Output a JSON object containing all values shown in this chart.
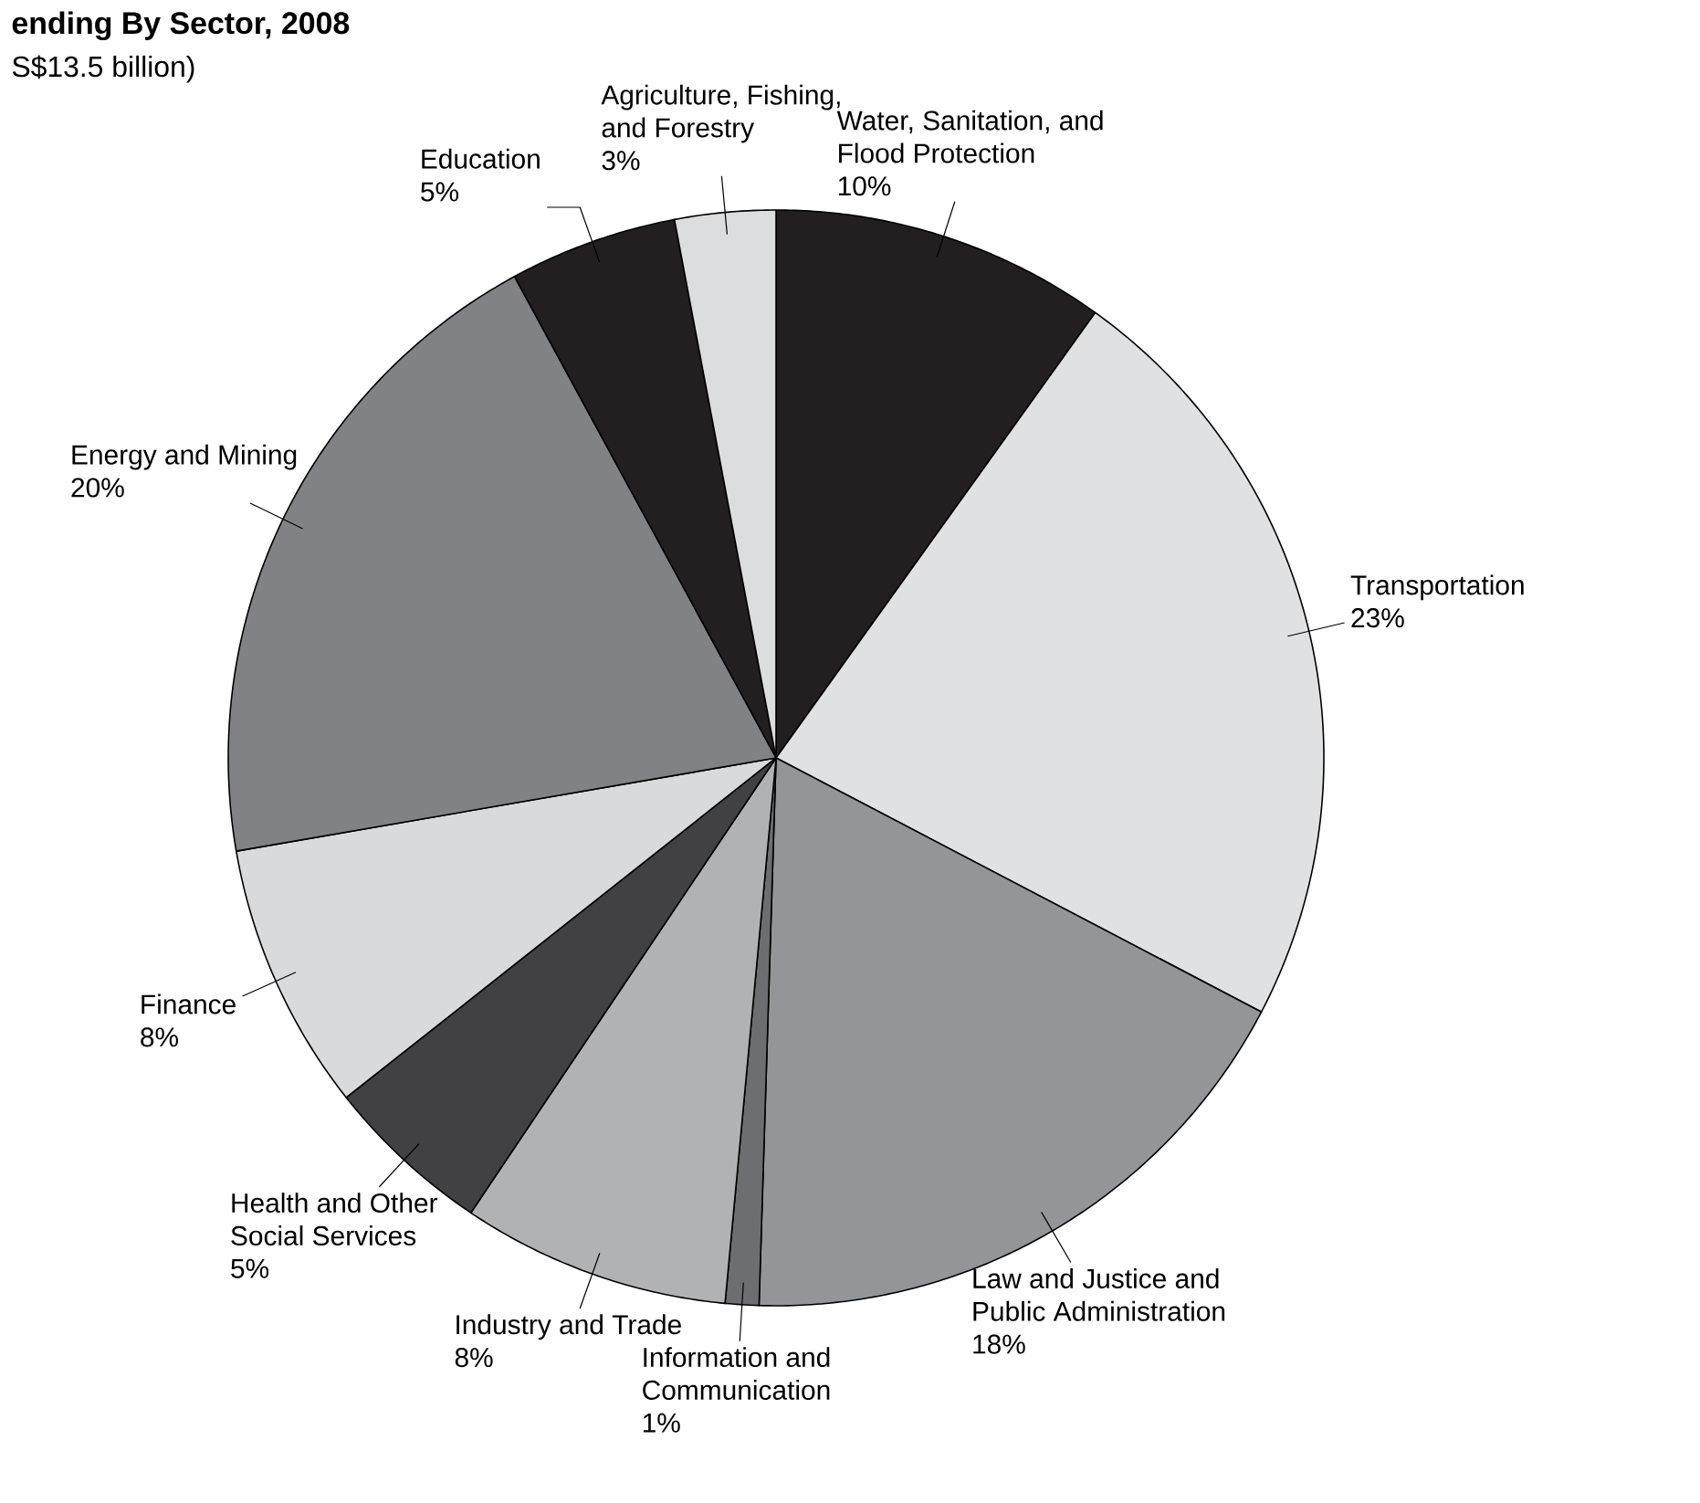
{
  "chart_data": {
    "type": "pie",
    "title": "ending By Sector, 2008",
    "subtitle": "S$13.5 billion)",
    "categories": [
      "Water, Sanitation, and Flood Protection",
      "Transportation",
      "Law and Justice and Public Administration",
      "Information and Communication",
      "Industry and Trade",
      "Health and Other Social Services",
      "Finance",
      "Energy and Mining",
      "Education",
      "Agriculture, Fishing, and Forestry"
    ],
    "values": [
      10,
      23,
      18,
      1,
      8,
      5,
      8,
      20,
      5,
      3
    ],
    "value_labels": [
      "10%",
      "23%",
      "18%",
      "1%",
      "8%",
      "5%",
      "8%",
      "20%",
      "5%",
      "3%"
    ],
    "colors": [
      "#231f20",
      "#e0e1e2",
      "#939598",
      "#6d6e71",
      "#b1b2b4",
      "#414042",
      "#d9dadb",
      "#808285",
      "#231f20",
      "#dcddde"
    ]
  }
}
